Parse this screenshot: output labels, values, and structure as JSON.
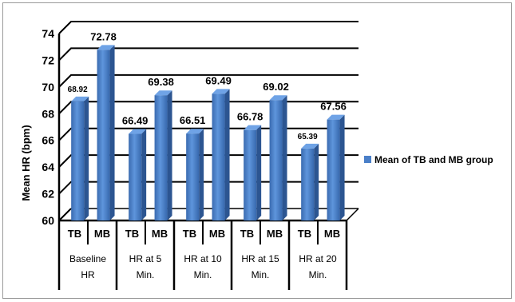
{
  "chart_data": {
    "type": "bar",
    "ylabel": "Mean HR (bpm)",
    "xlabel": "",
    "ylim": [
      60,
      74
    ],
    "yticks": [
      "60",
      "62",
      "64",
      "66",
      "68",
      "70",
      "72",
      "74"
    ],
    "groups": [
      "Baseline HR",
      "HR at 5 Min.",
      "HR at 10 Min.",
      "HR at 15 Min.",
      "HR at 20 Min."
    ],
    "group_lines": [
      [
        "Baseline",
        "HR"
      ],
      [
        "HR at 5",
        "Min."
      ],
      [
        "HR at 10",
        "Min."
      ],
      [
        "HR at 15",
        "Min."
      ],
      [
        "HR at 20",
        "Min."
      ]
    ],
    "subcategories": [
      "TB",
      "MB"
    ],
    "series": [
      {
        "name": "Mean of TB and MB group",
        "values": [
          68.92,
          72.78,
          66.49,
          69.38,
          66.51,
          69.49,
          66.78,
          69.02,
          65.39,
          67.56
        ],
        "labels": [
          "68.92",
          "72.78",
          "66.49",
          "69.38",
          "66.51",
          "69.49",
          "66.78",
          "69.02",
          "65.39",
          "67.56"
        ]
      }
    ],
    "grid": true,
    "legend": "right",
    "bar_color": "#4a7fc8"
  }
}
